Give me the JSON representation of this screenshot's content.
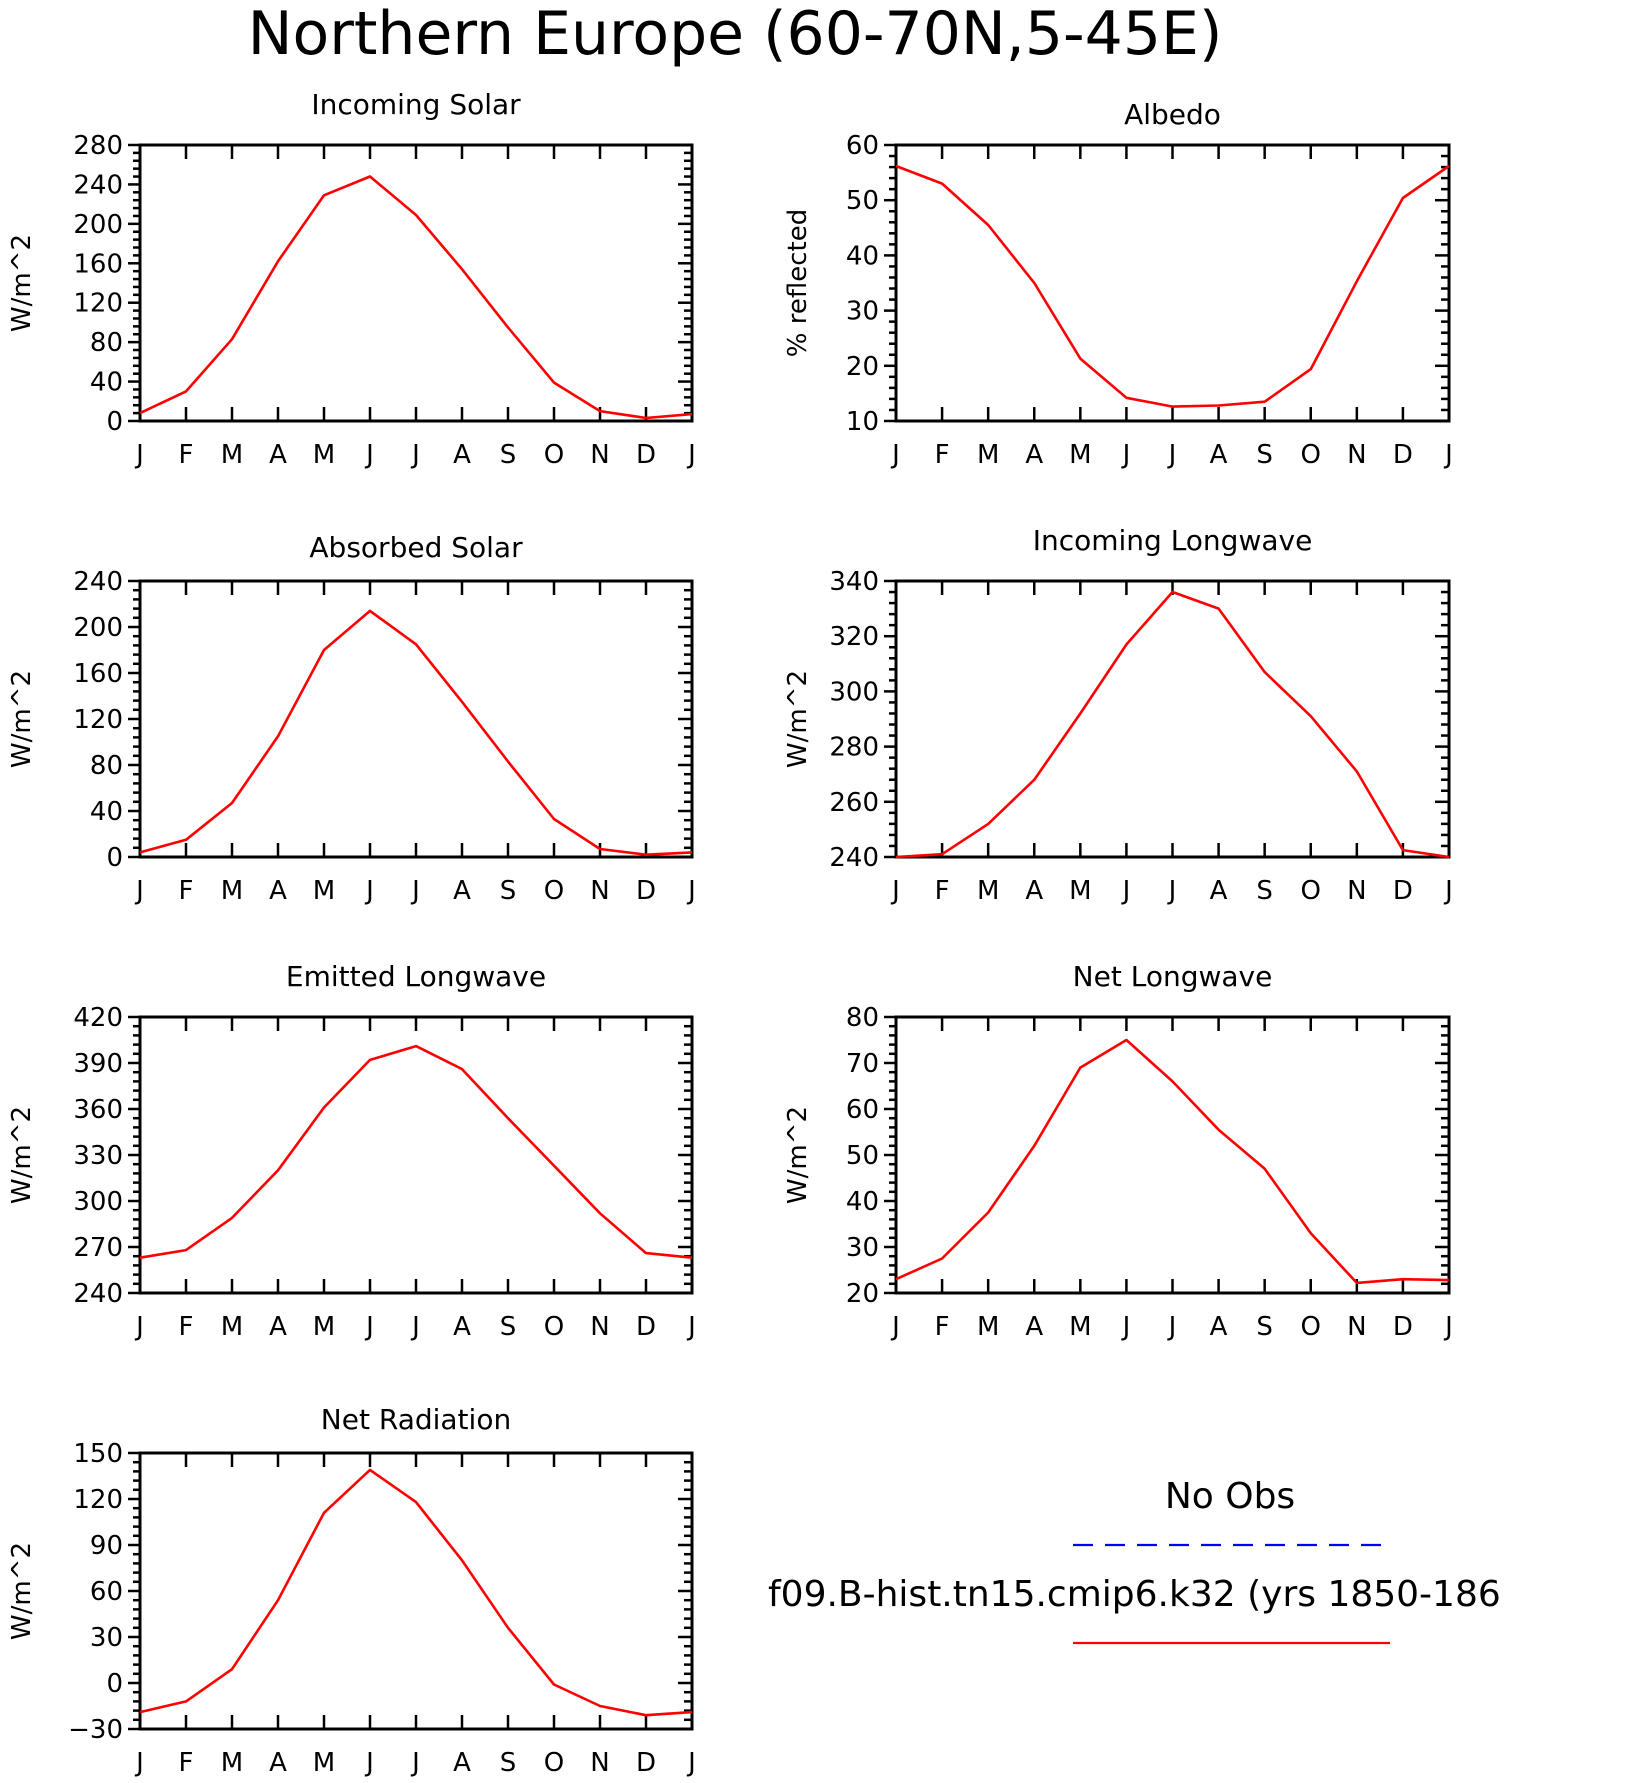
{
  "title": "Northern Europe (60-70N,5-45E)",
  "legend": {
    "obs_label": "No Obs",
    "obs_color": "#0000ff",
    "obs_style": "dashed",
    "model_label": "f09.B-hist.tn15.cmip6.k32 (yrs 1850-186",
    "model_color": "#ff0000",
    "model_style": "solid"
  },
  "chart_data": [
    {
      "type": "line",
      "title": "Incoming Solar",
      "ylabel": "W/m^2",
      "xlabel": "",
      "categories": [
        "J",
        "F",
        "M",
        "A",
        "M",
        "J",
        "J",
        "A",
        "S",
        "O",
        "N",
        "D",
        "J"
      ],
      "yticks": [
        0,
        40,
        80,
        120,
        160,
        200,
        240,
        280
      ],
      "ylim": [
        0,
        280
      ],
      "grid": false,
      "series": [
        {
          "color": "#ff0000",
          "values": [
            8,
            30,
            83,
            162,
            229,
            248,
            209,
            154,
            95,
            39,
            10,
            3,
            7
          ]
        }
      ]
    },
    {
      "type": "line",
      "title": "Albedo",
      "ylabel": "% reflected",
      "xlabel": "",
      "categories": [
        "J",
        "F",
        "M",
        "A",
        "M",
        "J",
        "J",
        "A",
        "S",
        "O",
        "N",
        "D",
        "J"
      ],
      "yticks": [
        10,
        20,
        30,
        40,
        50,
        60
      ],
      "ylim": [
        10,
        60
      ],
      "grid": false,
      "series": [
        {
          "color": "#ff0000",
          "values": [
            56.2,
            53,
            45.5,
            35,
            21.3,
            14.2,
            12.6,
            12.8,
            13.5,
            19.4,
            35.3,
            50.4,
            56.2
          ]
        }
      ]
    },
    {
      "type": "line",
      "title": "Absorbed Solar",
      "ylabel": "W/m^2",
      "xlabel": "",
      "categories": [
        "J",
        "F",
        "M",
        "A",
        "M",
        "J",
        "J",
        "A",
        "S",
        "O",
        "N",
        "D",
        "J"
      ],
      "yticks": [
        0,
        40,
        80,
        120,
        160,
        200,
        240
      ],
      "ylim": [
        0,
        240
      ],
      "grid": false,
      "series": [
        {
          "color": "#ff0000",
          "values": [
            4,
            15,
            47,
            105,
            180,
            214,
            185,
            135,
            83,
            33,
            7,
            2,
            4
          ]
        }
      ]
    },
    {
      "type": "line",
      "title": "Incoming Longwave",
      "ylabel": "W/m^2",
      "xlabel": "",
      "categories": [
        "J",
        "F",
        "M",
        "A",
        "M",
        "J",
        "J",
        "A",
        "S",
        "O",
        "N",
        "D",
        "J"
      ],
      "yticks": [
        240,
        260,
        280,
        300,
        320,
        340
      ],
      "ylim": [
        240,
        340
      ],
      "grid": false,
      "series": [
        {
          "color": "#ff0000",
          "values": [
            240,
            241,
            252,
            268,
            292,
            317,
            336,
            330,
            307,
            291,
            271,
            242.5,
            240
          ]
        }
      ]
    },
    {
      "type": "line",
      "title": "Emitted Longwave",
      "ylabel": "W/m^2",
      "xlabel": "",
      "categories": [
        "J",
        "F",
        "M",
        "A",
        "M",
        "J",
        "J",
        "A",
        "S",
        "O",
        "N",
        "D",
        "J"
      ],
      "yticks": [
        240,
        270,
        300,
        330,
        360,
        390,
        420
      ],
      "ylim": [
        240,
        420
      ],
      "grid": false,
      "series": [
        {
          "color": "#ff0000",
          "values": [
            263,
            268,
            289,
            320,
            361,
            392,
            401,
            386,
            354,
            323,
            292,
            266,
            263
          ]
        }
      ]
    },
    {
      "type": "line",
      "title": "Net Longwave",
      "ylabel": "W/m^2",
      "xlabel": "",
      "categories": [
        "J",
        "F",
        "M",
        "A",
        "M",
        "J",
        "J",
        "A",
        "S",
        "O",
        "N",
        "D",
        "J"
      ],
      "yticks": [
        20,
        30,
        40,
        50,
        60,
        70,
        80
      ],
      "ylim": [
        20,
        80
      ],
      "grid": false,
      "series": [
        {
          "color": "#ff0000",
          "values": [
            23,
            27.5,
            37.5,
            52,
            69,
            75,
            66,
            55.5,
            47,
            33,
            22.2,
            23,
            22.8
          ]
        }
      ]
    },
    {
      "type": "line",
      "title": "Net Radiation",
      "ylabel": "W/m^2",
      "xlabel": "",
      "categories": [
        "J",
        "F",
        "M",
        "A",
        "M",
        "J",
        "J",
        "A",
        "S",
        "O",
        "N",
        "D",
        "J"
      ],
      "yticks": [
        -30,
        0,
        30,
        60,
        90,
        120,
        150
      ],
      "ylim": [
        -30,
        150
      ],
      "grid": false,
      "series": [
        {
          "color": "#ff0000",
          "values": [
            -19,
            -12,
            9,
            54,
            111,
            139,
            118,
            80,
            36,
            -1,
            -15,
            -21,
            -19
          ]
        }
      ]
    }
  ]
}
